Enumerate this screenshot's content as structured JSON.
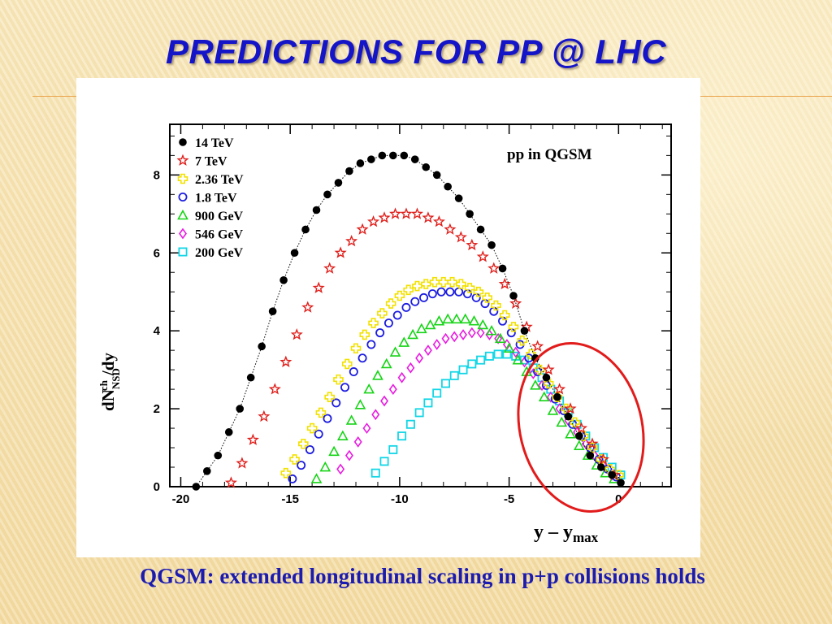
{
  "slide": {
    "title": "PREDICTIONS FOR  PP @ LHC",
    "caption": "QGSM: extended longitudinal scaling in p+p collisions holds"
  },
  "chart_data": {
    "type": "scatter",
    "title": "pp in QGSM",
    "ylabel": "dN^ch_NSD/dy",
    "xlabel": "y – y_max",
    "xlim": [
      -20.5,
      2.4
    ],
    "ylim": [
      0,
      9.3
    ],
    "xticks": [
      -20,
      -15,
      -10,
      -5,
      0
    ],
    "yticks": [
      0,
      2,
      4,
      6,
      8
    ],
    "legend_position": "top-left",
    "annotation": "red ellipse highlighting overlapping region near y - y_max = 0",
    "series": [
      {
        "name": "14 TeV",
        "marker": "filled-circle",
        "color": "#000000",
        "y0": -19.3,
        "peak_x": -9.6,
        "peak_y": 8.5,
        "dotted_line": true,
        "x": [
          -19.3,
          -18.8,
          -18.3,
          -17.8,
          -17.3,
          -16.8,
          -16.3,
          -15.8,
          -15.3,
          -14.8,
          -14.3,
          -13.8,
          -13.3,
          -12.8,
          -12.3,
          -11.8,
          -11.3,
          -10.8,
          -10.3,
          -9.8,
          -9.3,
          -8.8,
          -8.3,
          -7.8,
          -7.3,
          -6.8,
          -6.3,
          -5.8,
          -5.3,
          -4.8,
          -4.3,
          -3.8,
          -3.3,
          -2.8,
          -2.3,
          -1.8,
          -1.3,
          -0.8,
          -0.3,
          0.1
        ],
        "y": [
          0.0,
          0.4,
          0.8,
          1.4,
          2.0,
          2.8,
          3.6,
          4.5,
          5.3,
          6.0,
          6.6,
          7.1,
          7.5,
          7.8,
          8.1,
          8.3,
          8.4,
          8.5,
          8.5,
          8.5,
          8.4,
          8.2,
          8.0,
          7.7,
          7.4,
          7.0,
          6.6,
          6.2,
          5.6,
          4.9,
          4.0,
          3.3,
          2.8,
          2.3,
          1.8,
          1.3,
          0.8,
          0.5,
          0.3,
          0.1
        ]
      },
      {
        "name": "7 TeV",
        "marker": "open-star",
        "color": "#e0201c",
        "y0": -17.7,
        "peak_x": -8.9,
        "peak_y": 7.0,
        "x": [
          -17.7,
          -17.2,
          -16.7,
          -16.2,
          -15.7,
          -15.2,
          -14.7,
          -14.2,
          -13.7,
          -13.2,
          -12.7,
          -12.2,
          -11.7,
          -11.2,
          -10.7,
          -10.2,
          -9.7,
          -9.2,
          -8.7,
          -8.2,
          -7.7,
          -7.2,
          -6.7,
          -6.2,
          -5.7,
          -5.2,
          -4.7,
          -4.2,
          -3.7,
          -3.2,
          -2.7,
          -2.2,
          -1.7,
          -1.2,
          -0.7,
          -0.2
        ],
        "y": [
          0.1,
          0.6,
          1.2,
          1.8,
          2.5,
          3.2,
          3.9,
          4.6,
          5.1,
          5.6,
          6.0,
          6.3,
          6.6,
          6.8,
          6.9,
          7.0,
          7.0,
          7.0,
          6.9,
          6.8,
          6.6,
          6.4,
          6.2,
          5.9,
          5.6,
          5.2,
          4.7,
          4.1,
          3.6,
          3.0,
          2.5,
          2.0,
          1.5,
          1.1,
          0.7,
          0.3
        ]
      },
      {
        "name": "2.36 TeV",
        "marker": "open-cross",
        "color": "#f2e100",
        "y0": -15.2,
        "peak_x": -7.5,
        "peak_y": 5.25,
        "x": [
          -15.2,
          -14.8,
          -14.4,
          -14.0,
          -13.6,
          -13.2,
          -12.8,
          -12.4,
          -12.0,
          -11.6,
          -11.2,
          -10.8,
          -10.4,
          -10.0,
          -9.6,
          -9.2,
          -8.8,
          -8.4,
          -8.0,
          -7.6,
          -7.2,
          -6.8,
          -6.4,
          -6.0,
          -5.6,
          -5.2,
          -4.8,
          -4.4,
          -4.0,
          -3.6,
          -3.2,
          -2.8,
          -2.4,
          -2.0,
          -1.6,
          -1.2,
          -0.8,
          -0.4,
          0.0
        ],
        "y": [
          0.35,
          0.7,
          1.1,
          1.5,
          1.9,
          2.3,
          2.75,
          3.15,
          3.55,
          3.9,
          4.2,
          4.45,
          4.7,
          4.9,
          5.05,
          5.15,
          5.2,
          5.25,
          5.25,
          5.25,
          5.2,
          5.1,
          5.0,
          4.85,
          4.65,
          4.4,
          4.1,
          3.75,
          3.4,
          3.0,
          2.65,
          2.3,
          2.0,
          1.65,
          1.3,
          1.0,
          0.7,
          0.45,
          0.3
        ]
      },
      {
        "name": "1.8 TeV",
        "marker": "open-circle",
        "color": "#1d1de0",
        "y0": -14.9,
        "peak_x": -7.5,
        "peak_y": 5.0,
        "x": [
          -14.9,
          -14.5,
          -14.1,
          -13.7,
          -13.3,
          -12.9,
          -12.5,
          -12.1,
          -11.7,
          -11.3,
          -10.9,
          -10.5,
          -10.1,
          -9.7,
          -9.3,
          -8.9,
          -8.5,
          -8.1,
          -7.7,
          -7.3,
          -6.9,
          -6.5,
          -6.1,
          -5.7,
          -5.3,
          -4.9,
          -4.5,
          -4.1,
          -3.7,
          -3.3,
          -2.9,
          -2.5,
          -2.1,
          -1.7,
          -1.3,
          -0.9,
          -0.5,
          -0.1
        ],
        "y": [
          0.2,
          0.55,
          0.95,
          1.35,
          1.75,
          2.15,
          2.55,
          2.95,
          3.3,
          3.65,
          3.95,
          4.2,
          4.4,
          4.6,
          4.75,
          4.85,
          4.95,
          5.0,
          5.0,
          5.0,
          4.95,
          4.85,
          4.7,
          4.5,
          4.25,
          3.95,
          3.65,
          3.3,
          2.95,
          2.6,
          2.25,
          1.95,
          1.6,
          1.3,
          1.0,
          0.7,
          0.45,
          0.25
        ]
      },
      {
        "name": "900 GeV",
        "marker": "open-triangle",
        "color": "#16d416",
        "y0": -13.8,
        "peak_x": -6.6,
        "peak_y": 4.3,
        "x": [
          -13.8,
          -13.4,
          -13.0,
          -12.6,
          -12.2,
          -11.8,
          -11.4,
          -11.0,
          -10.6,
          -10.2,
          -9.8,
          -9.4,
          -9.0,
          -8.6,
          -8.2,
          -7.8,
          -7.4,
          -7.0,
          -6.6,
          -6.2,
          -5.8,
          -5.4,
          -5.0,
          -4.6,
          -4.2,
          -3.8,
          -3.4,
          -3.0,
          -2.6,
          -2.2,
          -1.8,
          -1.4,
          -1.0,
          -0.6,
          -0.2
        ],
        "y": [
          0.2,
          0.5,
          0.9,
          1.3,
          1.7,
          2.1,
          2.5,
          2.85,
          3.15,
          3.45,
          3.7,
          3.9,
          4.05,
          4.15,
          4.25,
          4.3,
          4.3,
          4.3,
          4.25,
          4.15,
          4.0,
          3.8,
          3.55,
          3.25,
          2.95,
          2.6,
          2.3,
          1.95,
          1.65,
          1.35,
          1.05,
          0.8,
          0.55,
          0.35,
          0.2
        ]
      },
      {
        "name": "546 GeV",
        "marker": "open-diamond",
        "color": "#e81ce0",
        "y0": -12.7,
        "peak_x": -5.9,
        "peak_y": 3.95,
        "x": [
          -12.7,
          -12.3,
          -11.9,
          -11.5,
          -11.1,
          -10.7,
          -10.3,
          -9.9,
          -9.5,
          -9.1,
          -8.7,
          -8.3,
          -7.9,
          -7.5,
          -7.1,
          -6.7,
          -6.3,
          -5.9,
          -5.5,
          -5.1,
          -4.7,
          -4.3,
          -3.9,
          -3.5,
          -3.1,
          -2.7,
          -2.3,
          -1.9,
          -1.5,
          -1.1,
          -0.7,
          -0.3
        ],
        "y": [
          0.45,
          0.8,
          1.15,
          1.5,
          1.85,
          2.2,
          2.5,
          2.8,
          3.05,
          3.3,
          3.5,
          3.65,
          3.8,
          3.85,
          3.9,
          3.95,
          3.95,
          3.9,
          3.8,
          3.65,
          3.45,
          3.2,
          2.9,
          2.6,
          2.3,
          2.0,
          1.7,
          1.4,
          1.1,
          0.8,
          0.55,
          0.3
        ]
      },
      {
        "name": "200 GeV",
        "marker": "open-square",
        "color": "#12d6e6",
        "y0": -11.1,
        "peak_x": -5.0,
        "peak_y": 3.4,
        "x": [
          -11.1,
          -10.7,
          -10.3,
          -9.9,
          -9.5,
          -9.1,
          -8.7,
          -8.3,
          -7.9,
          -7.5,
          -7.1,
          -6.7,
          -6.3,
          -5.9,
          -5.5,
          -5.1,
          -4.7,
          -4.3,
          -3.9,
          -3.5,
          -3.1,
          -2.7,
          -2.3,
          -1.9,
          -1.5,
          -1.1,
          -0.7,
          -0.3,
          0.1
        ],
        "y": [
          0.35,
          0.65,
          0.95,
          1.3,
          1.6,
          1.9,
          2.15,
          2.4,
          2.65,
          2.85,
          3.0,
          3.15,
          3.25,
          3.35,
          3.4,
          3.4,
          3.35,
          3.25,
          3.05,
          2.8,
          2.5,
          2.2,
          1.9,
          1.6,
          1.3,
          1.0,
          0.75,
          0.5,
          0.3
        ]
      }
    ]
  }
}
